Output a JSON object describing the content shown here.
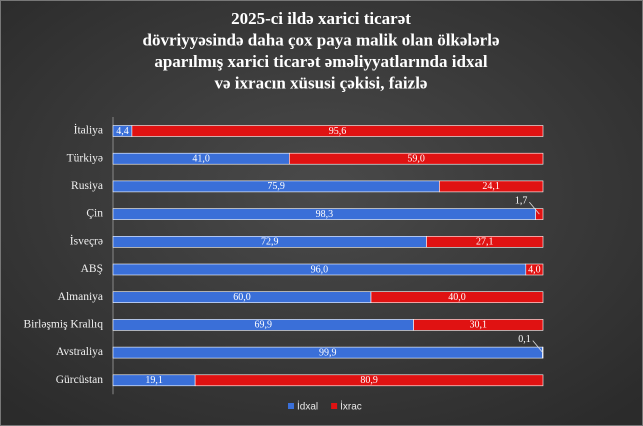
{
  "chart_data": {
    "type": "stacked-bar-horizontal",
    "title": [
      "2025-ci ildə xarici ticarət",
      "dövriyyəsində daha çox paya malik olan ölkələrlə",
      "aparılmış xarici ticarət əməliyyatlarında idxal",
      "və ixracın xüsusi çəkisi, faizlə"
    ],
    "categories": [
      "İtaliya",
      "Türkiyə",
      "Rusiya",
      "Çin",
      "İsveçrə",
      "ABŞ",
      "Almaniya",
      "Birləşmiş Krallıq",
      "Avstraliya",
      "Gürcüstan"
    ],
    "series": [
      {
        "name": "İdxal",
        "color": "#3a6fd8",
        "values": [
          4.4,
          41.0,
          75.9,
          98.3,
          72.9,
          96.0,
          60.0,
          69.9,
          99.9,
          19.1
        ],
        "value_labels": [
          "4,4",
          "41,0",
          "75,9",
          "98,3",
          "72,9",
          "96,0",
          "60,0",
          "69,9",
          "99,9",
          "19,1"
        ]
      },
      {
        "name": "İxrac",
        "color": "#e01212",
        "values": [
          95.6,
          59.0,
          24.1,
          1.7,
          27.1,
          4.0,
          40.0,
          30.1,
          0.1,
          80.9
        ],
        "value_labels": [
          "95,6",
          "59,0",
          "24,1",
          "1,7",
          "27,1",
          "4,0",
          "40,0",
          "30,1",
          "0,1",
          "80,9"
        ]
      }
    ]
  }
}
